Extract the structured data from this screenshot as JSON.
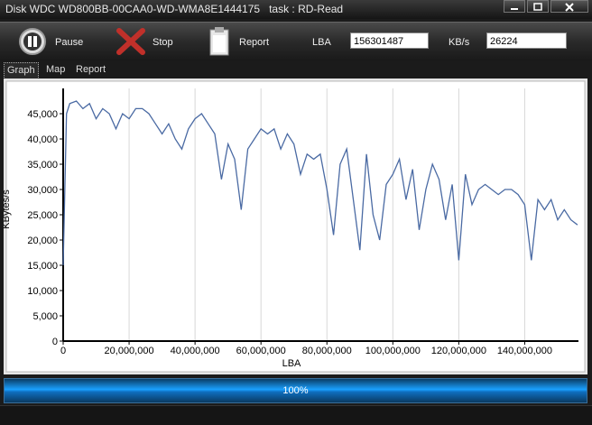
{
  "window": {
    "title": "Disk WDC WD800BB-00CAA0-WD-WMA8E1444175   task : RD-Read"
  },
  "toolbar": {
    "buttons": [
      "Pause",
      "Stop",
      "Report"
    ],
    "fields": [
      {
        "label": "LBA",
        "value": "156301487"
      },
      {
        "label": "KB/s",
        "value": "26224"
      }
    ]
  },
  "tabs": [
    "Graph",
    "Map",
    "Report"
  ],
  "chart_data": {
    "type": "line",
    "x_label": "LBA",
    "y_label": "KBytes/s",
    "color": "#4a6aa3",
    "grid": "x",
    "x": [
      0,
      1000000,
      2000000,
      4000000,
      6000000,
      8000000,
      10000000,
      12000000,
      14000000,
      16000000,
      18000000,
      20000000,
      22000000,
      24000000,
      26000000,
      28000000,
      30000000,
      32000000,
      34000000,
      36000000,
      38000000,
      40000000,
      42000000,
      44000000,
      46000000,
      48000000,
      50000000,
      52000000,
      54000000,
      56000000,
      58000000,
      60000000,
      62000000,
      64000000,
      66000000,
      68000000,
      70000000,
      72000000,
      74000000,
      76000000,
      78000000,
      80000000,
      82000000,
      84000000,
      86000000,
      88000000,
      90000000,
      92000000,
      94000000,
      96000000,
      98000000,
      100000000,
      102000000,
      104000000,
      106000000,
      108000000,
      110000000,
      112000000,
      114000000,
      116000000,
      118000000,
      120000000,
      122000000,
      124000000,
      126000000,
      128000000,
      130000000,
      132000000,
      134000000,
      136000000,
      138000000,
      140000000,
      142000000,
      144000000,
      146000000,
      148000000,
      150000000,
      152000000,
      154000000,
      156000000
    ],
    "values": [
      15000,
      45000,
      47000,
      47500,
      46000,
      47000,
      44000,
      46000,
      45000,
      42000,
      45000,
      44000,
      46000,
      46000,
      45000,
      43000,
      41000,
      43000,
      40000,
      38000,
      42000,
      44000,
      45000,
      43000,
      41000,
      32000,
      39000,
      36000,
      26000,
      38000,
      40000,
      42000,
      41000,
      42000,
      38000,
      41000,
      39000,
      33000,
      37000,
      36000,
      37000,
      30000,
      21000,
      35000,
      38000,
      28000,
      18000,
      37000,
      25000,
      20000,
      31000,
      33000,
      36000,
      28000,
      34000,
      22000,
      30000,
      35000,
      32000,
      24000,
      31000,
      16000,
      33000,
      27000,
      30000,
      31000,
      30000,
      29000,
      30000,
      30000,
      29000,
      27000,
      16000,
      28000,
      26000,
      28000,
      24000,
      26000,
      24000,
      23000
    ],
    "xlim": [
      0,
      156301487
    ],
    "ylim": [
      0,
      50000
    ],
    "xticks": [
      0,
      {
        "value": 20000000,
        "label": "20,000,000"
      },
      {
        "value": 40000000,
        "label": "40,000,000"
      },
      {
        "value": 60000000,
        "label": "60,000,000"
      },
      {
        "value": 80000000,
        "label": "80,000,000"
      },
      {
        "value": 100000000,
        "label": "100,000,000"
      },
      {
        "value": 120000000,
        "label": "120,000,000"
      },
      {
        "value": 140000000,
        "label": "140,000,000"
      }
    ],
    "yticks": [
      0,
      {
        "value": 5000,
        "label": "5,000"
      },
      {
        "value": 10000,
        "label": "10,000"
      },
      {
        "value": 15000,
        "label": "15,000"
      },
      {
        "value": 20000,
        "label": "20,000"
      },
      {
        "value": 25000,
        "label": "25,000"
      },
      {
        "value": 30000,
        "label": "30,000"
      },
      {
        "value": 35000,
        "label": "35,000"
      },
      {
        "value": 40000,
        "label": "40,000"
      },
      {
        "value": 45000,
        "label": "45,000"
      }
    ]
  },
  "progress": {
    "value": 100,
    "label": "100%"
  }
}
